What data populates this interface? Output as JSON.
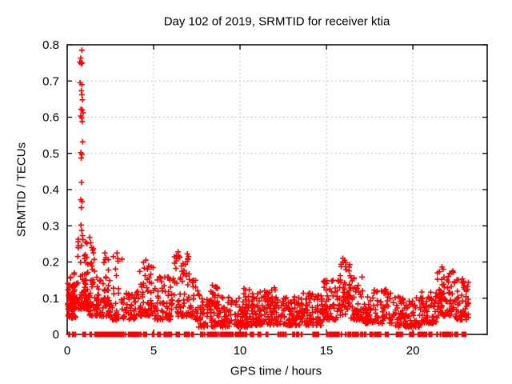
{
  "title": "Day 102 of 2019, SRMTID for receiver ktia",
  "xlabel": "GPS time / hours",
  "ylabel": "SRMTID / TECUs",
  "style": {
    "marker_color": "#ff0000",
    "axis_color": "#000000",
    "grid_color": "#b4b4b4",
    "background": "#ffffff",
    "text_color": "#000000"
  },
  "chart_data": {
    "type": "scatter",
    "title": "Day 102 of 2019, SRMTID for receiver ktia",
    "xlabel": "GPS time / hours",
    "ylabel": "SRMTID / TECUs",
    "legend": "none",
    "grid": "dotted",
    "marker": "plus",
    "marker_size": 7,
    "xlim": [
      0,
      24.3
    ],
    "ylim": [
      0,
      0.8
    ],
    "xticks": [
      0,
      5,
      10,
      15,
      20
    ],
    "xtick_labels": [
      "0",
      "5",
      "10",
      "15",
      "20"
    ],
    "yticks": [
      0,
      0.1,
      0.2,
      0.3,
      0.4,
      0.5,
      0.6,
      0.7,
      0.8
    ],
    "ytick_labels": [
      "0",
      "0.1",
      "0.2",
      "0.3",
      "0.4",
      "0.5",
      "0.6",
      "0.7",
      "0.8"
    ],
    "seed": 20190412,
    "outlier_points": {
      "format": [
        "x_hours",
        "srmtid_tecus"
      ],
      "rows": [
        [
          0.85,
          0.785
        ],
        [
          0.78,
          0.763
        ],
        [
          0.73,
          0.752
        ],
        [
          0.81,
          0.748
        ],
        [
          0.87,
          0.75
        ],
        [
          0.75,
          0.695
        ],
        [
          0.85,
          0.69
        ],
        [
          0.82,
          0.673
        ],
        [
          0.85,
          0.662
        ],
        [
          0.88,
          0.648
        ],
        [
          0.8,
          0.622
        ],
        [
          0.87,
          0.62
        ],
        [
          0.92,
          0.612
        ],
        [
          0.78,
          0.603
        ],
        [
          0.84,
          0.598
        ],
        [
          0.87,
          0.588
        ],
        [
          0.9,
          0.532
        ],
        [
          0.79,
          0.502
        ],
        [
          0.85,
          0.497
        ],
        [
          0.81,
          0.487
        ],
        [
          0.83,
          0.42
        ],
        [
          0.79,
          0.372
        ],
        [
          0.86,
          0.367
        ],
        [
          0.82,
          0.35
        ],
        [
          0.8,
          0.302
        ],
        [
          0.84,
          0.287
        ],
        [
          0.88,
          0.273
        ],
        [
          0.91,
          0.262
        ],
        [
          1.05,
          0.22
        ],
        [
          1.08,
          0.198
        ],
        [
          1.3,
          0.268
        ],
        [
          1.36,
          0.253
        ],
        [
          1.42,
          0.24
        ],
        [
          1.47,
          0.232
        ],
        [
          2.18,
          0.225
        ],
        [
          2.24,
          0.212
        ],
        [
          2.88,
          0.225
        ],
        [
          2.92,
          0.21
        ],
        [
          4.55,
          0.205
        ],
        [
          6.42,
          0.228
        ],
        [
          6.95,
          0.222
        ],
        [
          7.02,
          0.215
        ],
        [
          15.95,
          0.21
        ],
        [
          16.05,
          0.205
        ],
        [
          16.12,
          0.198
        ],
        [
          21.68,
          0.186
        ],
        [
          21.75,
          0.18
        ]
      ]
    },
    "cluster_bands": {
      "format": [
        "x_start",
        "x_end",
        "y_min",
        "y_max",
        "count",
        "low_bias_optional"
      ],
      "rows": [
        [
          0.0,
          0.45,
          0.07,
          0.17,
          55
        ],
        [
          0.05,
          0.5,
          0.045,
          0.095,
          25
        ],
        [
          0.5,
          1.2,
          0.07,
          0.3,
          70,
          2.2
        ],
        [
          1.2,
          2.0,
          0.05,
          0.16,
          55
        ],
        [
          1.3,
          1.6,
          0.14,
          0.24,
          10,
          1.0
        ],
        [
          2.0,
          2.5,
          0.05,
          0.21,
          38
        ],
        [
          2.5,
          3.2,
          0.04,
          0.22,
          35,
          2.4
        ],
        [
          3.2,
          4.2,
          0.04,
          0.12,
          45
        ],
        [
          4.2,
          5.0,
          0.05,
          0.2,
          55,
          1.8
        ],
        [
          5.0,
          6.2,
          0.04,
          0.16,
          65
        ],
        [
          6.2,
          7.2,
          0.05,
          0.22,
          65,
          1.8
        ],
        [
          7.2,
          7.6,
          0.04,
          0.15,
          25
        ],
        [
          7.6,
          9.0,
          0.02,
          0.11,
          85
        ],
        [
          8.3,
          8.7,
          0.07,
          0.14,
          12,
          1.0
        ],
        [
          9.0,
          10.5,
          0.02,
          0.105,
          95
        ],
        [
          10.2,
          10.6,
          0.06,
          0.13,
          10,
          1.0
        ],
        [
          10.5,
          12.0,
          0.025,
          0.12,
          100
        ],
        [
          11.5,
          12.1,
          0.06,
          0.14,
          14,
          1.0
        ],
        [
          12.0,
          13.5,
          0.025,
          0.105,
          95
        ],
        [
          13.5,
          14.8,
          0.025,
          0.115,
          85
        ],
        [
          14.8,
          15.6,
          0.04,
          0.15,
          55
        ],
        [
          15.6,
          16.4,
          0.05,
          0.2,
          60,
          1.1
        ],
        [
          16.4,
          17.2,
          0.04,
          0.16,
          55
        ],
        [
          17.2,
          18.8,
          0.03,
          0.125,
          90
        ],
        [
          18.8,
          20.5,
          0.02,
          0.105,
          95
        ],
        [
          20.5,
          21.4,
          0.03,
          0.12,
          60
        ],
        [
          21.4,
          22.4,
          0.05,
          0.18,
          70,
          1.3
        ],
        [
          22.4,
          23.25,
          0.04,
          0.155,
          60,
          1.4
        ]
      ]
    },
    "zero_epoch_clumps": {
      "format": [
        "x_start",
        "x_end",
        "count"
      ],
      "rows": [
        [
          0.05,
          0.15,
          6
        ],
        [
          0.3,
          0.5,
          8
        ],
        [
          0.9,
          1.1,
          8
        ],
        [
          1.3,
          1.45,
          6
        ],
        [
          1.6,
          2.1,
          25
        ],
        [
          2.1,
          3.0,
          45
        ],
        [
          3.0,
          3.4,
          18
        ],
        [
          3.5,
          4.3,
          30
        ],
        [
          4.4,
          4.6,
          8
        ],
        [
          4.9,
          5.05,
          6
        ],
        [
          5.2,
          5.5,
          14
        ],
        [
          5.6,
          6.1,
          20
        ],
        [
          6.3,
          6.5,
          8
        ],
        [
          6.7,
          7.3,
          22
        ],
        [
          7.7,
          8.0,
          10
        ],
        [
          8.1,
          9.6,
          45
        ],
        [
          9.7,
          10.4,
          28
        ],
        [
          10.6,
          10.8,
          8
        ],
        [
          11.0,
          11.2,
          6
        ],
        [
          11.5,
          11.65,
          5
        ],
        [
          12.2,
          12.7,
          15
        ],
        [
          13.0,
          13.6,
          20
        ],
        [
          14.2,
          14.55,
          12
        ],
        [
          15.0,
          15.9,
          25
        ],
        [
          16.1,
          17.3,
          35
        ],
        [
          17.5,
          18.2,
          20
        ],
        [
          18.4,
          18.6,
          8
        ],
        [
          19.0,
          19.5,
          16
        ],
        [
          19.8,
          20.1,
          10
        ],
        [
          20.3,
          21.1,
          28
        ],
        [
          21.3,
          22.3,
          30
        ],
        [
          22.4,
          22.6,
          8
        ],
        [
          22.8,
          23.1,
          10
        ]
      ]
    }
  }
}
